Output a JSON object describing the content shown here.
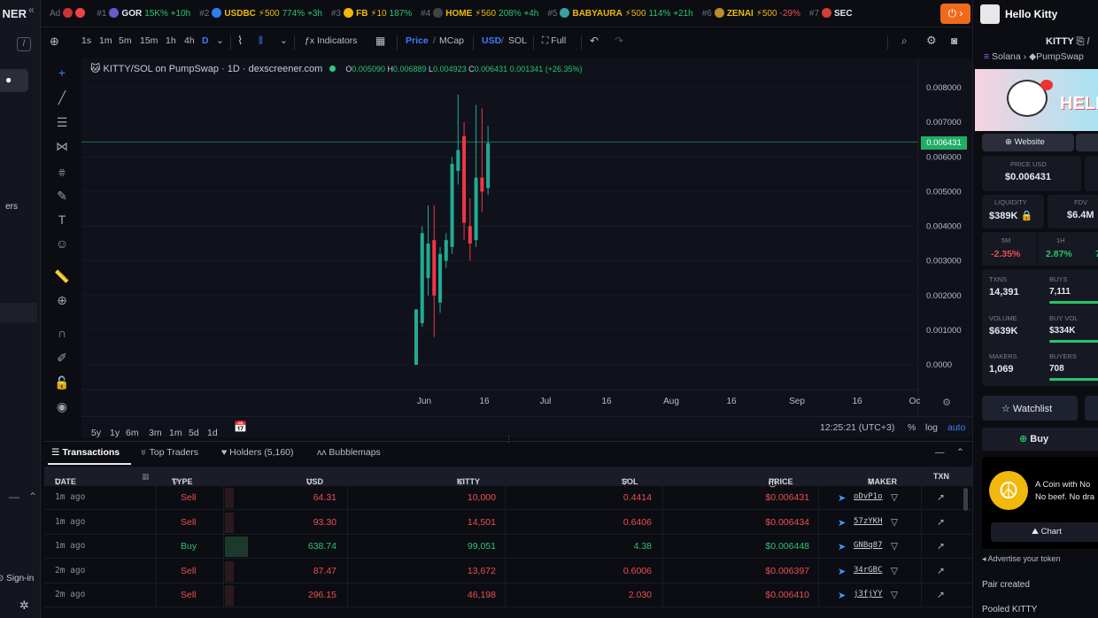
{
  "sidebar": {
    "brand": "NER",
    "label_fragment": "ers",
    "signin": "Sign-in"
  },
  "ticker": {
    "ad_label": "Ad",
    "items": [
      {
        "rank": "#1",
        "name": "GOR",
        "boost": "",
        "change": "15K%",
        "age": "10h",
        "color": "#6a5acd"
      },
      {
        "rank": "#2",
        "name": "USDBC",
        "boost": "500",
        "change": "774%",
        "age": "3h",
        "color": "#2f80ed"
      },
      {
        "rank": "#3",
        "name": "FB",
        "boost": "10",
        "change": "187%",
        "age": "",
        "color": "#f0b90b"
      },
      {
        "rank": "#4",
        "name": "HOME",
        "boost": "560",
        "change": "208%",
        "age": "4h",
        "color": "#444"
      },
      {
        "rank": "#5",
        "name": "BABYAURA",
        "boost": "500",
        "change": "114%",
        "age": "21h",
        "color": "#3aa0a0"
      },
      {
        "rank": "#6",
        "name": "ZENAI",
        "boost": "500",
        "change": "-29%",
        "age": "",
        "color": "#c08a2a"
      },
      {
        "rank": "#7",
        "name": "SEC",
        "boost": "",
        "change": "",
        "age": "",
        "color": "#d04030"
      }
    ]
  },
  "toolbar": {
    "timeframes": [
      "1s",
      "1m",
      "5m",
      "15m",
      "1h",
      "4h",
      "D"
    ],
    "indicators": "Indicators",
    "price": "Price",
    "mcap": "MCap",
    "usd": "USD",
    "sol": "SOL",
    "full": "Full"
  },
  "chart": {
    "legend_title": "KITTY/SOL on PumpSwap · 1D · dexscreener.com",
    "ohlc": {
      "o": "0.005090",
      "h": "0.006889",
      "l": "0.004923",
      "c": "0.006431",
      "change": "0.001341 (+26.35%)"
    },
    "current_price": "0.006431",
    "ranges": [
      "5y",
      "1y",
      "6m",
      "3m",
      "1m",
      "5d",
      "1d"
    ],
    "clock": "12:25:21 (UTC+3)",
    "scale_pct": "%",
    "scale_log": "log",
    "scale_auto": "auto"
  },
  "chart_data": {
    "type": "candlestick",
    "pair": "KITTY/SOL",
    "interval": "1D",
    "y_ticks": [
      "0.008000",
      "0.007000",
      "0.006000",
      "0.005000",
      "0.004000",
      "0.003000",
      "0.002000",
      "0.001000",
      "0.0000"
    ],
    "ylim": [
      0,
      0.0085
    ],
    "x_ticks": [
      "Jun",
      "16",
      "Jul",
      "16",
      "Aug",
      "16",
      "Sep",
      "16",
      "Oc"
    ],
    "candles": [
      {
        "o": 0.0,
        "h": 0.0016,
        "l": 0.0,
        "c": 0.0016
      },
      {
        "o": 0.0012,
        "h": 0.004,
        "l": 0.0011,
        "c": 0.0038
      },
      {
        "o": 0.0025,
        "h": 0.0046,
        "l": 0.002,
        "c": 0.0035
      },
      {
        "o": 0.0036,
        "h": 0.0046,
        "l": 0.0008,
        "c": 0.002
      },
      {
        "o": 0.0018,
        "h": 0.0034,
        "l": 0.0015,
        "c": 0.0032
      },
      {
        "o": 0.003,
        "h": 0.0038,
        "l": 0.0028,
        "c": 0.0036
      },
      {
        "o": 0.0034,
        "h": 0.006,
        "l": 0.0032,
        "c": 0.0058
      },
      {
        "o": 0.0056,
        "h": 0.0078,
        "l": 0.0052,
        "c": 0.0062
      },
      {
        "o": 0.0066,
        "h": 0.007,
        "l": 0.0036,
        "c": 0.0041
      },
      {
        "o": 0.004,
        "h": 0.0048,
        "l": 0.003,
        "c": 0.0035
      },
      {
        "o": 0.0036,
        "h": 0.0075,
        "l": 0.0034,
        "c": 0.0054
      },
      {
        "o": 0.0054,
        "h": 0.0074,
        "l": 0.0044,
        "c": 0.005
      },
      {
        "o": 0.0051,
        "h": 0.0069,
        "l": 0.0049,
        "c": 0.0064
      }
    ]
  },
  "panel": {
    "tabs": [
      "Transactions",
      "Top Traders",
      "Holders (5,160)",
      "Bubblemaps"
    ],
    "columns": [
      "DATE",
      "TYPE",
      "USD",
      "KITTY",
      "SOL",
      "PRICE",
      "MAKER",
      "TXN"
    ],
    "rows": [
      {
        "date": "1m ago",
        "type": "Sell",
        "usd": "64.31",
        "kitty": "10,000",
        "sol": "0.4414",
        "price": "$0.006431",
        "maker": "oDvP1o"
      },
      {
        "date": "1m ago",
        "type": "Sell",
        "usd": "93.30",
        "kitty": "14,501",
        "sol": "0.6406",
        "price": "$0.006434",
        "maker": "57zYKH"
      },
      {
        "date": "1m ago",
        "type": "Buy",
        "usd": "638.74",
        "kitty": "99,051",
        "sol": "4.38",
        "price": "$0.006448",
        "maker": "GNBq87"
      },
      {
        "date": "2m ago",
        "type": "Sell",
        "usd": "87.47",
        "kitty": "13,672",
        "sol": "0.6006",
        "price": "$0.006397",
        "maker": "34rGBC"
      },
      {
        "date": "2m ago",
        "type": "Sell",
        "usd": "296.15",
        "kitty": "46,198",
        "sol": "2.030",
        "price": "$0.006410",
        "maker": "j3fjYY"
      }
    ]
  },
  "right": {
    "title": "Hello Kitty",
    "symbol": "KITTY",
    "chain": "Solana",
    "dex": "PumpSwap",
    "website": "Website",
    "banner_text": "HELL",
    "price_usd_label": "PRICE USD",
    "price_usd": "$0.006431",
    "liquidity_label": "LIQUIDITY",
    "liquidity": "$389K",
    "fdv_label": "FDV",
    "fdv": "$6.4M",
    "m5_label": "5M",
    "m5": "-2.35%",
    "h1_label": "1H",
    "h1": "2.87%",
    "h6": "7",
    "txns_label": "TXNS",
    "txns": "14,391",
    "buys_label": "BUYS",
    "buys": "7,111",
    "volume_label": "VOLUME",
    "volume": "$639K",
    "buyvol_label": "BUY VOL",
    "buyvol": "$334K",
    "makers_label": "MAKERS",
    "makers": "1,069",
    "buyers_label": "BUYERS",
    "buyers": "708",
    "watchlist": "Watchlist",
    "buy": "Buy",
    "promo_line1": "A Coin with No",
    "promo_line2": "No beef. No dra",
    "chart_btn": "Chart",
    "advertise": "Advertise your token",
    "pair_created": "Pair created",
    "pooled": "Pooled KITTY"
  }
}
